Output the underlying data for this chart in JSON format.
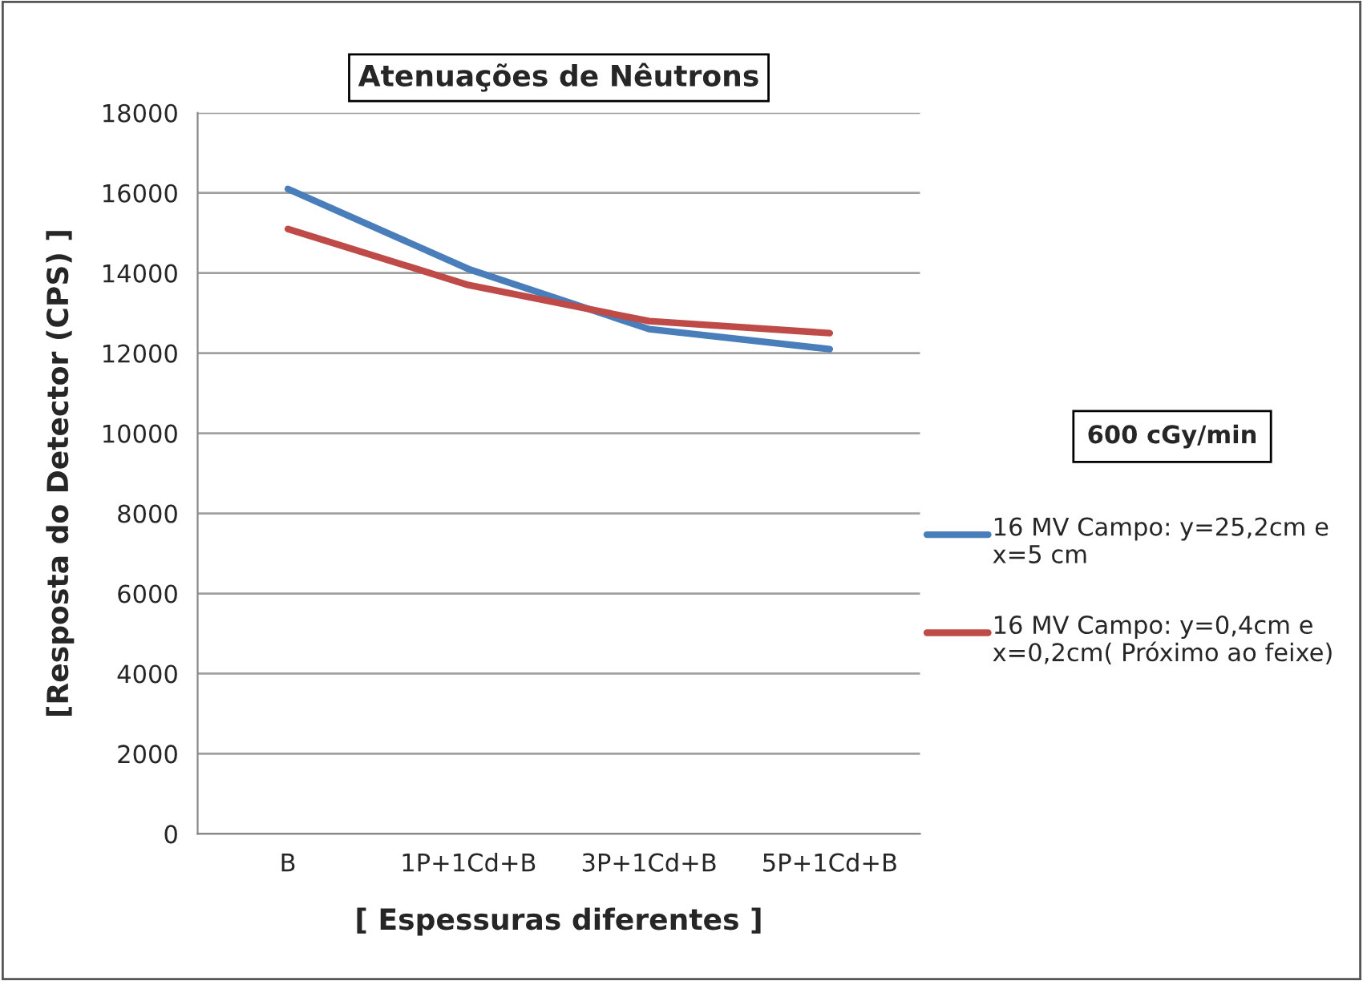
{
  "chart_data": {
    "type": "line",
    "title": "Atenuações de Nêutrons",
    "xlabel": "[ Espessuras diferentes ]",
    "ylabel": "[Resposta do Detector (CPS) ]",
    "categories": [
      "B",
      "1P+1Cd+B",
      "3P+1Cd+B",
      "5P+1Cd+B"
    ],
    "series": [
      {
        "name": "16 MV Campo: y=25,2cm e x=5 cm",
        "color": "#4a7ebb",
        "values": [
          16100,
          14100,
          12600,
          12100
        ]
      },
      {
        "name": "16 MV Campo: y=0,4cm e x=0,2cm( Próximo ao feixe)",
        "color": "#be4b48",
        "values": [
          15100,
          13700,
          12800,
          12500
        ]
      }
    ],
    "ylim": [
      0,
      18000
    ],
    "yticks": [
      0,
      2000,
      4000,
      6000,
      8000,
      10000,
      12000,
      14000,
      16000,
      18000
    ],
    "grid": "y",
    "legend": "right",
    "marker": "none",
    "line_style": "solid",
    "annotations": [
      "600 cGy/min"
    ]
  }
}
